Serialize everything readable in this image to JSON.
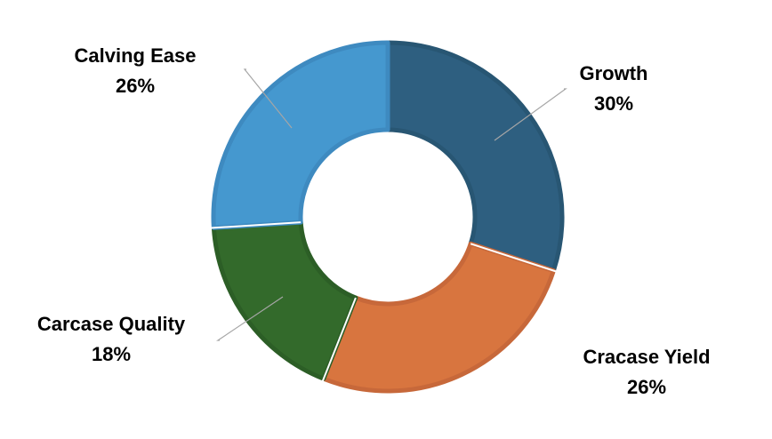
{
  "chart_data": {
    "type": "pie",
    "subtype": "donut",
    "categories": [
      "Growth",
      "Cracase Yield",
      "Carcase Quality",
      "Calving Ease"
    ],
    "values": [
      30,
      26,
      18,
      26
    ],
    "value_labels": [
      "30%",
      "26%",
      "18%",
      "26%"
    ],
    "colors": [
      "#2e5f80",
      "#d8753f",
      "#336a2b",
      "#4598cf"
    ],
    "edge_colors": [
      "#285673",
      "#c7683a",
      "#2c5e26",
      "#3e8ac0"
    ],
    "legend": "none"
  }
}
